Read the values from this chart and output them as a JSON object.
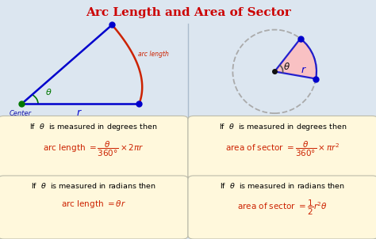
{
  "title": "Arc Length and Area of Sector",
  "title_color": "#cc0000",
  "bg_color": "#dce6f0",
  "box_color": "#fff8dc",
  "box_edge_color": "#ccccaa",
  "divider_color": "#aabbcc",
  "text_color": "#000000",
  "red_color": "#cc2200",
  "blue_color": "#0000cc",
  "green_color": "#007700",
  "fig_width": 4.74,
  "fig_height": 3.02,
  "dpi": 100
}
